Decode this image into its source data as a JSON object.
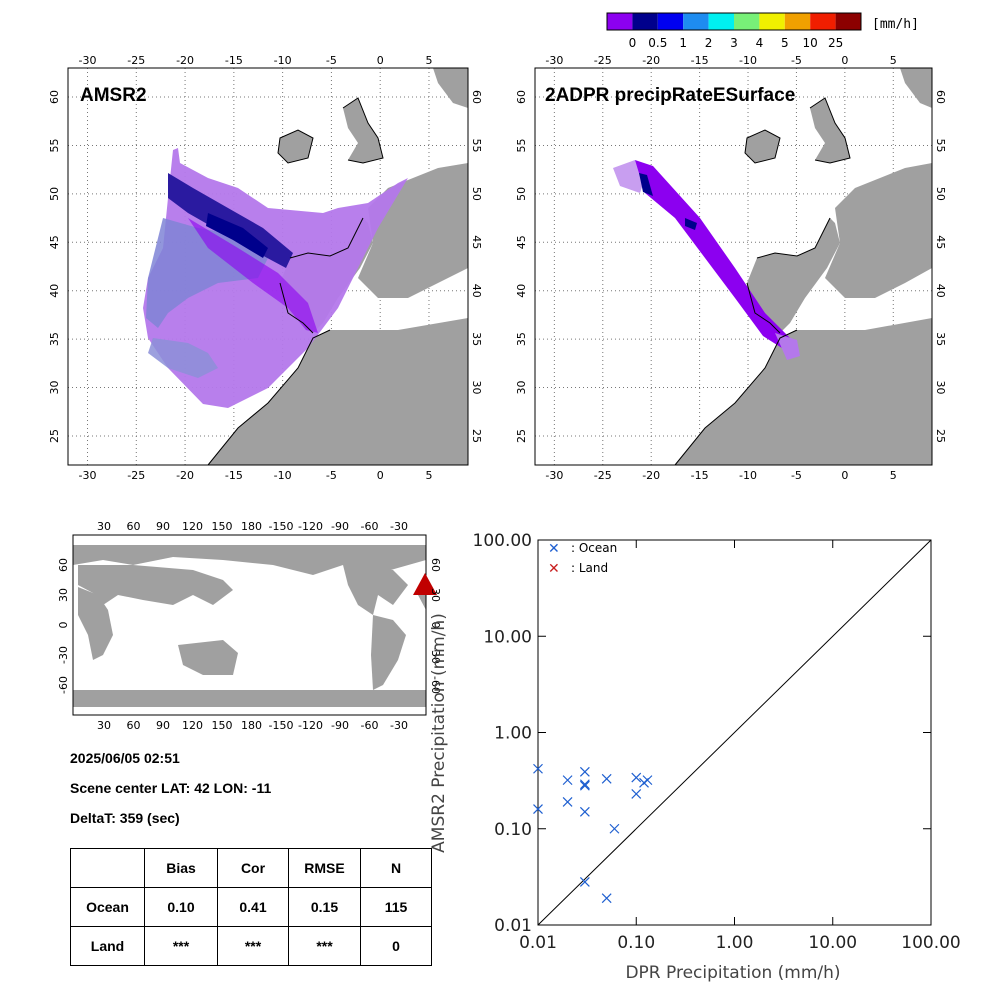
{
  "colorbar": {
    "unit": "[mm/h]",
    "colors": [
      "#8c00f0",
      "#00008c",
      "#0000f0",
      "#1e8cf0",
      "#00f0f0",
      "#78f078",
      "#f0f000",
      "#f0a000",
      "#f01e00",
      "#8c0000"
    ],
    "labels": [
      "0",
      "0.5",
      "1",
      "2",
      "3",
      "4",
      "5",
      "10",
      "25"
    ]
  },
  "panels": {
    "amsr2_title": "AMSR2",
    "dpr_title": "2ADPR precipRateESurface",
    "lon_ticks": [
      "-30",
      "-25",
      "-20",
      "-15",
      "-10",
      "-5",
      "0",
      "5"
    ],
    "lat_ticks": [
      "25",
      "30",
      "35",
      "40",
      "45",
      "50",
      "55",
      "60"
    ]
  },
  "world_map": {
    "lon_ticks": [
      "30",
      "60",
      "90",
      "120",
      "150",
      "180",
      "-150",
      "-120",
      "-90",
      "-60",
      "-30"
    ],
    "lat_ticks": [
      "-60",
      "-30",
      "0",
      "30",
      "60"
    ]
  },
  "info": {
    "datetime": "2025/06/05 02:51",
    "scene_center": "Scene center LAT: 42   LON: -11",
    "deltat": "DeltaT:  359 (sec)"
  },
  "stats_table": {
    "headers": [
      "",
      "Bias",
      "Cor",
      "RMSE",
      "N"
    ],
    "rows": [
      [
        "Ocean",
        "0.10",
        "0.41",
        "0.15",
        "115"
      ],
      [
        "Land",
        "***",
        "***",
        "***",
        "0"
      ]
    ]
  },
  "chart_data": {
    "type": "scatter",
    "xlabel": "DPR Precipitation (mm/h)",
    "ylabel": "AMSR2 Precipitation (mm/h)",
    "xscale": "log",
    "yscale": "log",
    "xlim": [
      0.01,
      100
    ],
    "ylim": [
      0.01,
      100
    ],
    "x_ticks": [
      "0.01",
      "0.10",
      "1.00",
      "10.00",
      "100.00"
    ],
    "y_ticks": [
      "0.01",
      "0.10",
      "1.00",
      "10.00",
      "100.00"
    ],
    "legend": {
      "position": "top-left",
      "entries": [
        ": Ocean",
        ": Land"
      ]
    },
    "series": [
      {
        "name": "Ocean",
        "color": "#1e5fd0",
        "points": [
          [
            0.01,
            0.42
          ],
          [
            0.01,
            0.16
          ],
          [
            0.02,
            0.32
          ],
          [
            0.02,
            0.19
          ],
          [
            0.03,
            0.39
          ],
          [
            0.03,
            0.29
          ],
          [
            0.03,
            0.28
          ],
          [
            0.03,
            0.15
          ],
          [
            0.03,
            0.028
          ],
          [
            0.05,
            0.33
          ],
          [
            0.05,
            0.019
          ],
          [
            0.06,
            0.1
          ],
          [
            0.1,
            0.34
          ],
          [
            0.1,
            0.23
          ],
          [
            0.12,
            0.3
          ],
          [
            0.13,
            0.32
          ]
        ]
      },
      {
        "name": "Land",
        "color": "#c81e1e",
        "points": []
      }
    ],
    "reference_line": "1:1"
  }
}
